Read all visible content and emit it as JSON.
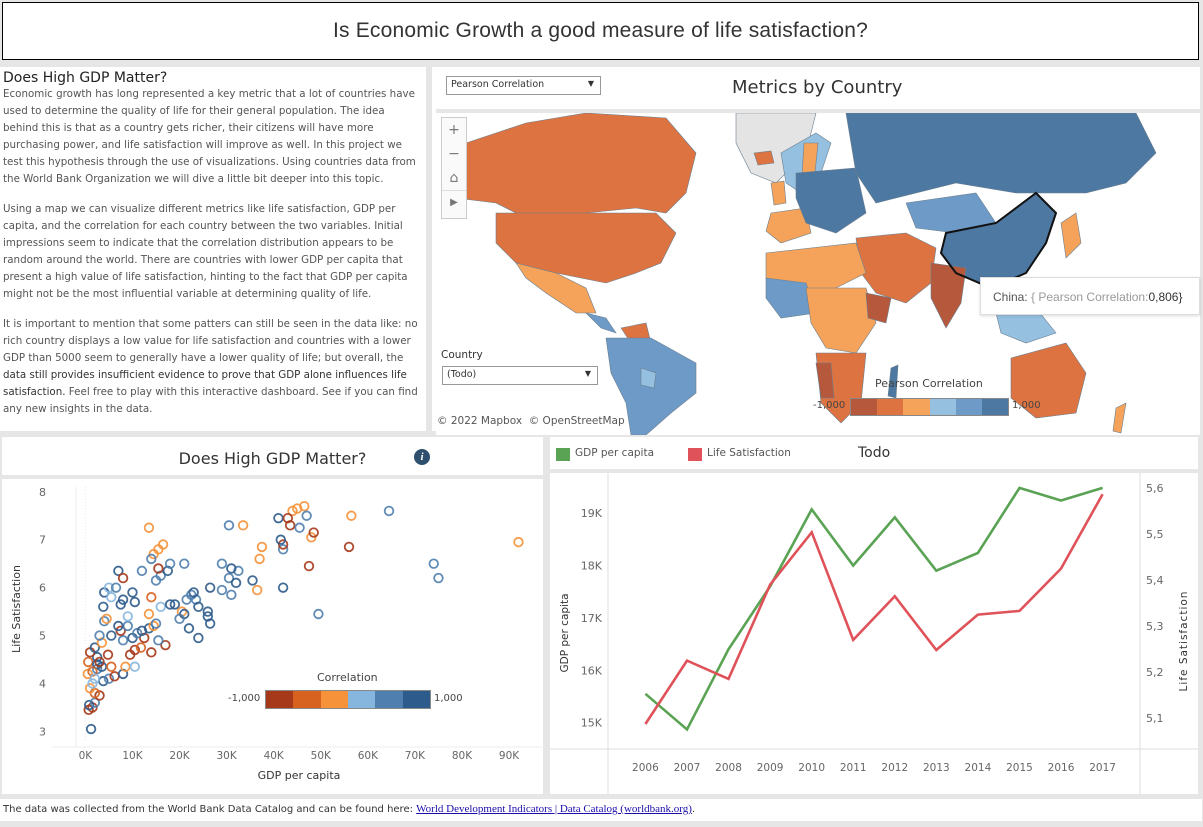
{
  "header": {
    "title": "Is Economic Growth a good measure of life satisfaction?"
  },
  "text_panel": {
    "heading": "Does High GDP Matter?",
    "paragraphs": [
      "Economic growth has long represented a key metric that a lot of countries have used to determine the quality of life for their general population. The idea behind this is that as a country gets richer, their citizens will have more purchasing power, and life satisfaction will improve as well. In this project we test this hypothesis through the use of visualizations. Using countries data from the World Bank Organization we will dive a little bit deeper into this topic.",
      "Using a map we can visualize different metrics like life satisfaction, GDP per capita, and the correlation for each country between the two variables.  Initial impressions seem to indicate that the correlation distribution appears to be random around the world. There are countries with lower GDP per capita that present a high value of life satisfaction, hinting to the fact that GDP per capita might not be the most influential variable at determining quality of life."
    ],
    "para3_light": "It is important to mention that some patters can still be seen in the data like: no rich country displays a low value for life satisfaction and countries with a lower GDP than 5000 seem to generally have a lower quality of life; but overall, the ",
    "para3_dark": "data still provides insufficient evidence to prove that GDP alone influences life satisfaction.",
    "para3_tail": " Feel free to play with this interactive dashboard. See if you can find any new insights in the data."
  },
  "map": {
    "title": "Metrics by Country",
    "metric_select": {
      "value": "Pearson Correlation",
      "arrow": "▼"
    },
    "country_filter": {
      "label": "Country",
      "value": "(Todo)",
      "arrow": "▼"
    },
    "controls": {
      "zoom_in": "+",
      "zoom_out": "−",
      "home": "⌂",
      "expand": "▶"
    },
    "attribution": "© 2022 Mapbox  © OpenStreetMap",
    "legend": {
      "title": "Pearson Correlation",
      "min": "-1,000",
      "max": "1,000",
      "colors": [
        "#b6583c",
        "#dd7340",
        "#f5a35a",
        "#96c0e0",
        "#6d9ac6",
        "#4d78a1"
      ]
    },
    "tooltip": {
      "country": "China:",
      "open": "{ ",
      "metric": "Pearson Correlation:",
      "value": "0,806",
      "close": "}"
    },
    "land_gray": "#e4e4e4"
  },
  "scatter": {
    "title": "Does High GDP Matter?",
    "info_icon": "i",
    "legend": {
      "title": "Correlation",
      "min": "-1,000",
      "max": "1,000",
      "colors": [
        "#a5391a",
        "#d7621f",
        "#f5923a",
        "#86b6dd",
        "#4f7fae",
        "#2d5b8b"
      ]
    }
  },
  "line": {
    "legend": [
      {
        "label": "GDP per capita",
        "color": "#5aa354"
      },
      {
        "label": "Life Satisfaction",
        "color": "#e05259"
      }
    ],
    "filter_label": "Todo"
  },
  "footer": {
    "text": "The data was collected from the World Bank Data Catalog and can be found here: ",
    "link": "World Development Indicators | Data Catalog (worldbank.org)",
    "end": "."
  },
  "chart_data": [
    {
      "type": "scatter",
      "title": "Does High GDP Matter?",
      "xlabel": "GDP per capita",
      "ylabel": "Life Satisfaction",
      "xlim": [
        -2000,
        97000
      ],
      "ylim": [
        2.8,
        8.1
      ],
      "xticks": [
        "0K",
        "10K",
        "20K",
        "30K",
        "40K",
        "50K",
        "60K",
        "70K",
        "80K",
        "90K"
      ],
      "xtick_values": [
        0,
        10000,
        20000,
        30000,
        40000,
        50000,
        60000,
        70000,
        80000,
        90000
      ],
      "yticks": [
        "3",
        "4",
        "5",
        "6",
        "7",
        "8"
      ],
      "ytick_values": [
        3,
        4,
        5,
        6,
        7,
        8
      ],
      "legend": {
        "title": "Correlation",
        "range": [
          -1,
          1
        ],
        "placement": "bottom-right"
      },
      "points": [
        {
          "x": 1200,
          "y": 3.05,
          "c": 0.9
        },
        {
          "x": 700,
          "y": 3.45,
          "c": -0.9
        },
        {
          "x": 1500,
          "y": 3.5,
          "c": -0.8
        },
        {
          "x": 800,
          "y": 3.55,
          "c": 0.7
        },
        {
          "x": 2000,
          "y": 3.6,
          "c": 0.4
        },
        {
          "x": 3000,
          "y": 3.75,
          "c": -0.8
        },
        {
          "x": 2000,
          "y": 3.8,
          "c": -0.6
        },
        {
          "x": 1000,
          "y": 3.9,
          "c": -0.3
        },
        {
          "x": 1500,
          "y": 4.0,
          "c": 0.1
        },
        {
          "x": 3800,
          "y": 4.05,
          "c": 0.8
        },
        {
          "x": 5000,
          "y": 4.1,
          "c": 0.5
        },
        {
          "x": 6200,
          "y": 4.15,
          "c": -0.9
        },
        {
          "x": 8000,
          "y": 4.2,
          "c": 0.9
        },
        {
          "x": 500,
          "y": 4.2,
          "c": -0.3
        },
        {
          "x": 2500,
          "y": 4.3,
          "c": 0.6
        },
        {
          "x": 3500,
          "y": 4.35,
          "c": 0.9
        },
        {
          "x": 5500,
          "y": 4.35,
          "c": -0.4
        },
        {
          "x": 8500,
          "y": 4.35,
          "c": -0.3
        },
        {
          "x": 10500,
          "y": 4.35,
          "c": 0.3
        },
        {
          "x": 600,
          "y": 4.45,
          "c": -0.4
        },
        {
          "x": 2500,
          "y": 4.55,
          "c": 0.7
        },
        {
          "x": 4800,
          "y": 4.6,
          "c": -0.9
        },
        {
          "x": 1000,
          "y": 4.65,
          "c": -0.7
        },
        {
          "x": 9500,
          "y": 4.6,
          "c": -0.8
        },
        {
          "x": 10500,
          "y": 4.7,
          "c": -0.7
        },
        {
          "x": 11800,
          "y": 4.75,
          "c": -0.6
        },
        {
          "x": 14000,
          "y": 4.65,
          "c": -0.8
        },
        {
          "x": 17000,
          "y": 4.8,
          "c": -0.7
        },
        {
          "x": 2000,
          "y": 4.75,
          "c": 0.8
        },
        {
          "x": 3500,
          "y": 4.85,
          "c": -0.3
        },
        {
          "x": 8000,
          "y": 4.9,
          "c": 0.4
        },
        {
          "x": 15500,
          "y": 4.9,
          "c": 0.5
        },
        {
          "x": 3000,
          "y": 5.0,
          "c": 0.6
        },
        {
          "x": 5500,
          "y": 5.0,
          "c": 0.7
        },
        {
          "x": 10000,
          "y": 4.95,
          "c": 0.8
        },
        {
          "x": 12500,
          "y": 4.95,
          "c": -0.9
        },
        {
          "x": 11000,
          "y": 5.05,
          "c": 0.6
        },
        {
          "x": 12000,
          "y": 5.1,
          "c": 0.8
        },
        {
          "x": 13500,
          "y": 5.15,
          "c": 0.9
        },
        {
          "x": 7500,
          "y": 5.1,
          "c": -0.9
        },
        {
          "x": 9000,
          "y": 5.2,
          "c": 0.4
        },
        {
          "x": 14500,
          "y": 5.2,
          "c": -0.3
        },
        {
          "x": 15000,
          "y": 5.25,
          "c": 0.6
        },
        {
          "x": 7000,
          "y": 5.2,
          "c": 0.9
        },
        {
          "x": 4000,
          "y": 5.3,
          "c": 0.5
        },
        {
          "x": 4500,
          "y": 5.35,
          "c": -0.3
        },
        {
          "x": 9000,
          "y": 5.4,
          "c": 0.3
        },
        {
          "x": 13500,
          "y": 5.45,
          "c": -0.3
        },
        {
          "x": 20500,
          "y": 5.5,
          "c": -0.3
        },
        {
          "x": 21000,
          "y": 5.45,
          "c": 0.8
        },
        {
          "x": 20000,
          "y": 5.35,
          "c": 0.6
        },
        {
          "x": 22000,
          "y": 5.15,
          "c": 0.9
        },
        {
          "x": 24000,
          "y": 4.95,
          "c": 0.9
        },
        {
          "x": 26500,
          "y": 5.25,
          "c": 0.9
        },
        {
          "x": 26000,
          "y": 5.4,
          "c": 0.9
        },
        {
          "x": 26000,
          "y": 5.5,
          "c": 0.9
        },
        {
          "x": 16000,
          "y": 5.6,
          "c": 0.3
        },
        {
          "x": 18000,
          "y": 5.65,
          "c": 0.9
        },
        {
          "x": 19000,
          "y": 5.65,
          "c": 0.9
        },
        {
          "x": 23500,
          "y": 5.75,
          "c": 0.6
        },
        {
          "x": 24000,
          "y": 5.6,
          "c": 0.7
        },
        {
          "x": 21500,
          "y": 5.75,
          "c": 0.5
        },
        {
          "x": 22500,
          "y": 5.85,
          "c": 0.6
        },
        {
          "x": 23000,
          "y": 5.9,
          "c": 0.9
        },
        {
          "x": 3800,
          "y": 5.6,
          "c": 0.9
        },
        {
          "x": 7500,
          "y": 5.65,
          "c": 0.7
        },
        {
          "x": 8000,
          "y": 5.75,
          "c": 0.9
        },
        {
          "x": 10500,
          "y": 5.7,
          "c": 0.9
        },
        {
          "x": 14000,
          "y": 5.8,
          "c": -0.6
        },
        {
          "x": 4000,
          "y": 5.9,
          "c": 0.9
        },
        {
          "x": 5500,
          "y": 5.8,
          "c": 0.3
        },
        {
          "x": 10000,
          "y": 5.9,
          "c": 0.9
        },
        {
          "x": 5000,
          "y": 6.0,
          "c": 0.3
        },
        {
          "x": 6500,
          "y": 6.0,
          "c": 0.4
        },
        {
          "x": 15000,
          "y": 6.15,
          "c": 0.5
        },
        {
          "x": 16000,
          "y": 6.25,
          "c": 0.4
        },
        {
          "x": 17500,
          "y": 6.35,
          "c": 0.9
        },
        {
          "x": 12000,
          "y": 6.35,
          "c": 0.6
        },
        {
          "x": 7000,
          "y": 6.35,
          "c": 0.8
        },
        {
          "x": 8000,
          "y": 6.2,
          "c": -0.9
        },
        {
          "x": 26500,
          "y": 6.0,
          "c": 0.9
        },
        {
          "x": 29000,
          "y": 5.95,
          "c": 0.5
        },
        {
          "x": 31000,
          "y": 5.85,
          "c": 0.6
        },
        {
          "x": 30500,
          "y": 6.2,
          "c": 0.6
        },
        {
          "x": 32000,
          "y": 6.1,
          "c": 0.9
        },
        {
          "x": 32500,
          "y": 6.35,
          "c": 0.6
        },
        {
          "x": 31000,
          "y": 6.4,
          "c": 0.9
        },
        {
          "x": 29000,
          "y": 6.5,
          "c": 0.5
        },
        {
          "x": 18000,
          "y": 6.5,
          "c": 0.6
        },
        {
          "x": 21000,
          "y": 6.5,
          "c": 0.5
        },
        {
          "x": 35500,
          "y": 6.15,
          "c": 0.9
        },
        {
          "x": 36500,
          "y": 5.95,
          "c": -0.3
        },
        {
          "x": 42000,
          "y": 6.0,
          "c": 0.9
        },
        {
          "x": 47500,
          "y": 6.45,
          "c": -0.8
        },
        {
          "x": 49500,
          "y": 5.45,
          "c": 0.4
        },
        {
          "x": 42000,
          "y": 6.8,
          "c": 0.5
        },
        {
          "x": 37000,
          "y": 6.6,
          "c": -0.3
        },
        {
          "x": 37500,
          "y": 6.85,
          "c": -0.3
        },
        {
          "x": 42000,
          "y": 6.9,
          "c": -0.9
        },
        {
          "x": 41500,
          "y": 7.0,
          "c": 0.9
        },
        {
          "x": 48000,
          "y": 7.05,
          "c": -0.3
        },
        {
          "x": 48500,
          "y": 7.15,
          "c": -0.8
        },
        {
          "x": 56000,
          "y": 6.85,
          "c": -0.8
        },
        {
          "x": 74000,
          "y": 6.5,
          "c": 0.4
        },
        {
          "x": 75000,
          "y": 6.2,
          "c": 0.4
        },
        {
          "x": 92000,
          "y": 6.95,
          "c": -0.3
        },
        {
          "x": 64500,
          "y": 7.6,
          "c": 0.4
        },
        {
          "x": 56500,
          "y": 7.5,
          "c": -0.3
        },
        {
          "x": 44000,
          "y": 7.6,
          "c": -0.3
        },
        {
          "x": 45000,
          "y": 7.65,
          "c": -0.3
        },
        {
          "x": 46500,
          "y": 7.7,
          "c": -0.3
        },
        {
          "x": 47000,
          "y": 7.5,
          "c": 0.4
        },
        {
          "x": 41000,
          "y": 7.45,
          "c": 0.9
        },
        {
          "x": 43000,
          "y": 7.45,
          "c": -0.8
        },
        {
          "x": 43500,
          "y": 7.3,
          "c": -0.8
        },
        {
          "x": 45500,
          "y": 7.25,
          "c": 0.4
        },
        {
          "x": 30500,
          "y": 7.3,
          "c": 0.4
        },
        {
          "x": 33500,
          "y": 7.3,
          "c": -0.3
        },
        {
          "x": 13500,
          "y": 7.25,
          "c": -0.3
        },
        {
          "x": 14500,
          "y": 6.7,
          "c": -0.3
        },
        {
          "x": 15500,
          "y": 6.8,
          "c": -0.3
        },
        {
          "x": 16500,
          "y": 6.9,
          "c": -0.3
        },
        {
          "x": 14000,
          "y": 6.6,
          "c": 0.6
        },
        {
          "x": 15500,
          "y": 6.4,
          "c": -0.8
        },
        {
          "x": 2500,
          "y": 4.4,
          "c": 0.9
        },
        {
          "x": 3000,
          "y": 4.45,
          "c": -0.8
        },
        {
          "x": 1500,
          "y": 4.25,
          "c": -0.4
        },
        {
          "x": 2000,
          "y": 4.1,
          "c": 0.1
        }
      ]
    },
    {
      "type": "line",
      "title": "Todo",
      "xlabel": "",
      "ylabel": "GDP per capita",
      "y2label": "Life Satisfaction",
      "x": [
        2006,
        2007,
        2008,
        2009,
        2010,
        2011,
        2012,
        2013,
        2014,
        2015,
        2016,
        2017
      ],
      "ylim": [
        14650,
        19650
      ],
      "y2lim": [
        5.05,
        5.62
      ],
      "yticks": [
        "15K",
        "16K",
        "17K",
        "18K",
        "19K"
      ],
      "ytick_values": [
        15000,
        16000,
        17000,
        18000,
        19000
      ],
      "y2ticks": [
        "5,1",
        "5,2",
        "5,3",
        "5,4",
        "5,5",
        "5,6"
      ],
      "y2tick_values": [
        5.1,
        5.2,
        5.3,
        5.4,
        5.5,
        5.6
      ],
      "legend_placement": "top-left",
      "series": [
        {
          "name": "GDP per capita",
          "axis": "left",
          "color": "#5aa354",
          "values": [
            15550,
            14870,
            16400,
            17600,
            19070,
            18000,
            18920,
            17900,
            18240,
            19480,
            19240,
            19480
          ]
        },
        {
          "name": "Life Satisfaction",
          "axis": "right",
          "color": "#e05259",
          "values": [
            5.087,
            5.225,
            5.185,
            5.39,
            5.504,
            5.27,
            5.365,
            5.248,
            5.325,
            5.333,
            5.425,
            5.587
          ]
        }
      ]
    }
  ]
}
